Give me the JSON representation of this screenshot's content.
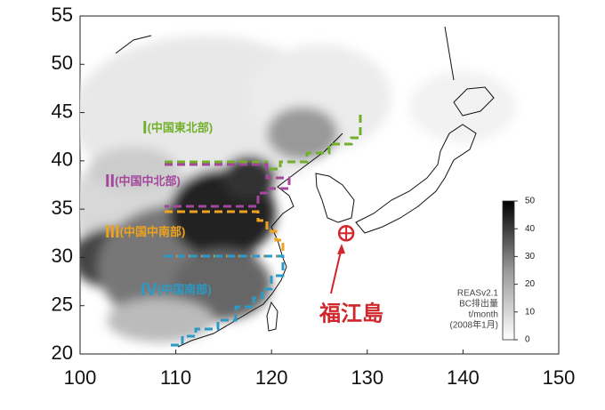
{
  "map": {
    "xlim": [
      100,
      150
    ],
    "ylim": [
      20,
      55
    ],
    "xticks": [
      100,
      110,
      120,
      130,
      140,
      150
    ],
    "yticks": [
      20,
      25,
      30,
      35,
      40,
      45,
      50,
      55
    ],
    "regions": [
      {
        "numeral": "I",
        "name": "(中国東北部)",
        "color": "#72b02c"
      },
      {
        "numeral": "II",
        "name": "(中国中北部)",
        "color": "#a3479c"
      },
      {
        "numeral": "III",
        "name": "(中国中南部)",
        "color": "#eea21e"
      },
      {
        "numeral": "IV",
        "name": "(中国南部)",
        "color": "#2b9ac6"
      }
    ],
    "marker": {
      "label": "福江島",
      "lon": 127.8,
      "lat": 32.5,
      "color": "#d0262c"
    },
    "colorbar": {
      "lim": [
        0,
        50
      ],
      "ticks": [
        0,
        10,
        20,
        30,
        40,
        50
      ],
      "caption": [
        "REASv2.1",
        "BC排出量",
        "t/month",
        "(2008年1月)"
      ]
    }
  }
}
